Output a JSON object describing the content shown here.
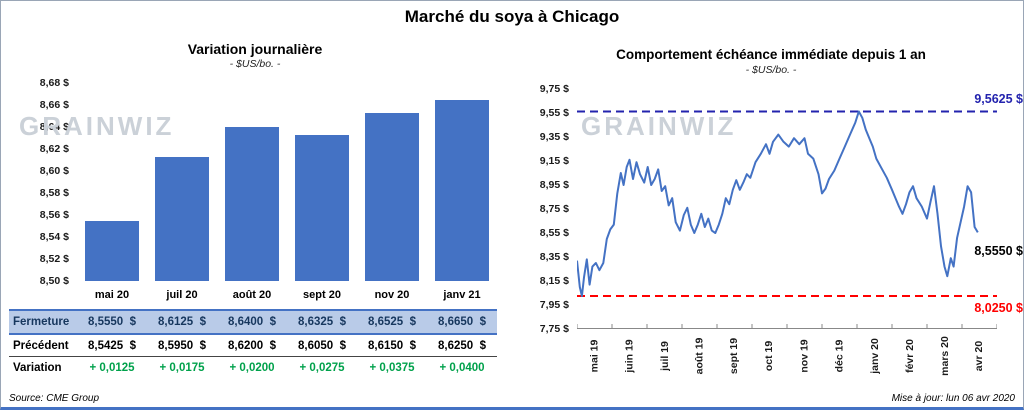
{
  "page": {
    "title": "Marché du soya à Chicago",
    "watermark": "GRAINWIZ",
    "source": "Source: CME Group",
    "updated": "Mise à jour: lun 06 avr 2020"
  },
  "colors": {
    "accent_blue": "#4472C4",
    "max_line_blue": "#2323AE",
    "min_line_red": "#FF0000",
    "variation_green": "#00A14B",
    "table_highlight_bg": "#B9CBE8",
    "table_highlight_text": "#17375E",
    "watermark_gray": "#CBD1D8"
  },
  "chart_data": [
    {
      "type": "bar",
      "title": "Variation  journalière",
      "subtitle": "- $US/bo. -",
      "categories": [
        "mai 20",
        "juil 20",
        "août 20",
        "sept 20",
        "nov 20",
        "janv 21"
      ],
      "values": [
        8.555,
        8.6125,
        8.64,
        8.6325,
        8.6525,
        8.665
      ],
      "ylim": [
        8.5,
        8.68
      ],
      "yticks": [
        "8,68 $",
        "8,66 $",
        "8,64 $",
        "8,62 $",
        "8,60 $",
        "8,58 $",
        "8,56 $",
        "8,54 $",
        "8,52 $",
        "8,50 $"
      ],
      "grid": false,
      "legend": false
    },
    {
      "type": "line",
      "title": "Comportement  échéance  immédiate  depuis 1 an",
      "subtitle": "- $US/bo. -",
      "x_labels": [
        "mai 19",
        "juin 19",
        "juil 19",
        "août 19",
        "sept 19",
        "oct 19",
        "nov 19",
        "déc 19",
        "janv 20",
        "févr 20",
        "mars 20",
        "avr 20"
      ],
      "ylim": [
        7.75,
        9.75
      ],
      "yticks": [
        "9,75 $",
        "9,55 $",
        "9,35 $",
        "9,15 $",
        "8,95 $",
        "8,75 $",
        "8,55 $",
        "8,35 $",
        "8,15 $",
        "7,95 $",
        "7,75 $"
      ],
      "max_value": 9.5625,
      "max_label": "9,5625 $",
      "min_value": 8.025,
      "min_label": "8,0250 $",
      "last_value": 8.555,
      "last_label": "8,5550 $",
      "grid": false,
      "legend": false,
      "points": [
        [
          0,
          8.32
        ],
        [
          0.08,
          8.1
        ],
        [
          0.14,
          8.025
        ],
        [
          0.2,
          8.18
        ],
        [
          0.28,
          8.33
        ],
        [
          0.36,
          8.12
        ],
        [
          0.44,
          8.27
        ],
        [
          0.54,
          8.3
        ],
        [
          0.64,
          8.24
        ],
        [
          0.75,
          8.3
        ],
        [
          0.85,
          8.5
        ],
        [
          0.95,
          8.58
        ],
        [
          1.05,
          8.62
        ],
        [
          1.15,
          8.88
        ],
        [
          1.25,
          9.05
        ],
        [
          1.33,
          8.95
        ],
        [
          1.42,
          9.1
        ],
        [
          1.5,
          9.16
        ],
        [
          1.6,
          9.0
        ],
        [
          1.7,
          9.14
        ],
        [
          1.8,
          9.04
        ],
        [
          1.92,
          8.97
        ],
        [
          2.02,
          9.1
        ],
        [
          2.12,
          8.95
        ],
        [
          2.22,
          9.0
        ],
        [
          2.32,
          9.08
        ],
        [
          2.42,
          8.9
        ],
        [
          2.52,
          8.94
        ],
        [
          2.62,
          8.78
        ],
        [
          2.72,
          8.84
        ],
        [
          2.82,
          8.64
        ],
        [
          2.94,
          8.57
        ],
        [
          3.05,
          8.7
        ],
        [
          3.15,
          8.76
        ],
        [
          3.25,
          8.62
        ],
        [
          3.35,
          8.55
        ],
        [
          3.45,
          8.62
        ],
        [
          3.55,
          8.71
        ],
        [
          3.65,
          8.6
        ],
        [
          3.75,
          8.67
        ],
        [
          3.85,
          8.57
        ],
        [
          3.95,
          8.55
        ],
        [
          4.05,
          8.62
        ],
        [
          4.15,
          8.71
        ],
        [
          4.25,
          8.84
        ],
        [
          4.35,
          8.79
        ],
        [
          4.45,
          8.91
        ],
        [
          4.55,
          8.99
        ],
        [
          4.65,
          8.91
        ],
        [
          4.75,
          8.97
        ],
        [
          4.85,
          9.04
        ],
        [
          4.95,
          9.01
        ],
        [
          5.1,
          9.14
        ],
        [
          5.25,
          9.21
        ],
        [
          5.4,
          9.29
        ],
        [
          5.5,
          9.21
        ],
        [
          5.6,
          9.31
        ],
        [
          5.75,
          9.37
        ],
        [
          5.9,
          9.31
        ],
        [
          6.05,
          9.27
        ],
        [
          6.2,
          9.34
        ],
        [
          6.35,
          9.29
        ],
        [
          6.5,
          9.34
        ],
        [
          6.6,
          9.21
        ],
        [
          6.75,
          9.17
        ],
        [
          6.9,
          9.04
        ],
        [
          7.0,
          8.88
        ],
        [
          7.1,
          8.92
        ],
        [
          7.2,
          9.0
        ],
        [
          7.35,
          9.07
        ],
        [
          7.5,
          9.17
        ],
        [
          7.65,
          9.27
        ],
        [
          7.8,
          9.37
        ],
        [
          7.95,
          9.47
        ],
        [
          8.05,
          9.5625
        ],
        [
          8.15,
          9.51
        ],
        [
          8.25,
          9.41
        ],
        [
          8.35,
          9.34
        ],
        [
          8.45,
          9.27
        ],
        [
          8.55,
          9.17
        ],
        [
          8.7,
          9.09
        ],
        [
          8.85,
          9.01
        ],
        [
          9.0,
          8.91
        ],
        [
          9.1,
          8.84
        ],
        [
          9.2,
          8.77
        ],
        [
          9.3,
          8.71
        ],
        [
          9.4,
          8.79
        ],
        [
          9.5,
          8.89
        ],
        [
          9.6,
          8.94
        ],
        [
          9.7,
          8.84
        ],
        [
          9.85,
          8.77
        ],
        [
          10.0,
          8.67
        ],
        [
          10.1,
          8.81
        ],
        [
          10.2,
          8.94
        ],
        [
          10.3,
          8.71
        ],
        [
          10.4,
          8.44
        ],
        [
          10.5,
          8.27
        ],
        [
          10.58,
          8.19
        ],
        [
          10.68,
          8.34
        ],
        [
          10.76,
          8.27
        ],
        [
          10.86,
          8.51
        ],
        [
          10.96,
          8.64
        ],
        [
          11.06,
          8.77
        ],
        [
          11.16,
          8.94
        ],
        [
          11.26,
          8.89
        ],
        [
          11.36,
          8.6
        ],
        [
          11.45,
          8.555
        ]
      ]
    }
  ],
  "table": {
    "rows": [
      {
        "label": "Fermeture",
        "style": "highlight",
        "values": [
          "8,5550  $",
          "8,6125  $",
          "8,6400  $",
          "8,6325  $",
          "8,6525  $",
          "8,6650  $"
        ]
      },
      {
        "label": "Précédent",
        "style": "normal",
        "values": [
          "8,5425  $",
          "8,5950  $",
          "8,6200  $",
          "8,6050  $",
          "8,6150  $",
          "8,6250  $"
        ]
      },
      {
        "label": "Variation",
        "style": "green",
        "values": [
          "+ 0,0125",
          "+ 0,0175",
          "+ 0,0200",
          "+ 0,0275",
          "+ 0,0375",
          "+ 0,0400"
        ]
      }
    ]
  }
}
